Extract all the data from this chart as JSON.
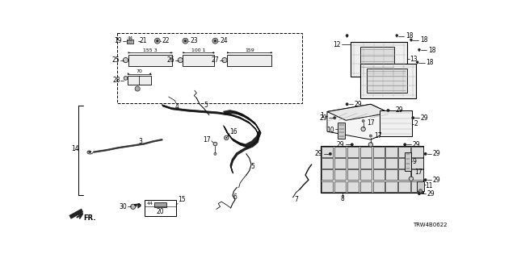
{
  "diagram_code": "TRW4B0622",
  "bg_color": "#ffffff",
  "line_color": "#000000",
  "text_color": "#000000",
  "fig_width": 6.4,
  "fig_height": 3.2,
  "dpi": 100,
  "gray": "#888888",
  "dark": "#222222"
}
